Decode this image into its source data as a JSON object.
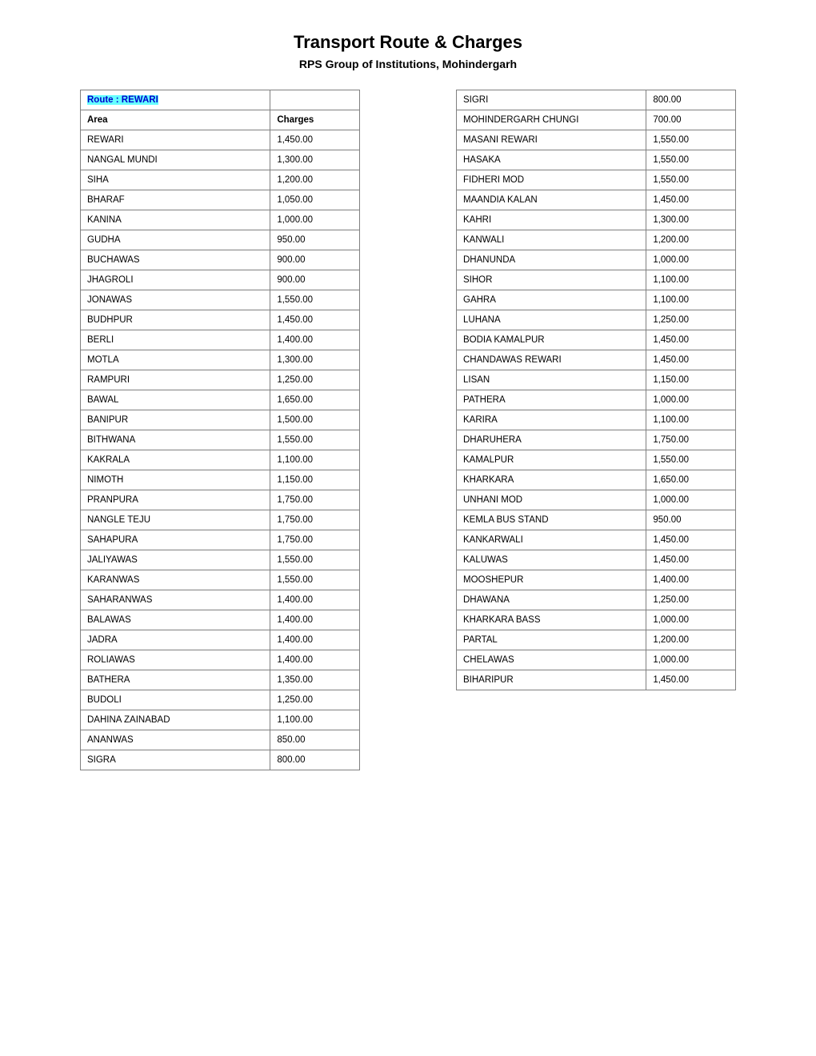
{
  "title": "Transport Route &  Charges",
  "subtitle": "RPS Group of Institutions, Mohindergarh",
  "route_label": "Route : REWARI",
  "header_area": "Area",
  "header_charges": "Charges",
  "left_rows": [
    {
      "area": "REWARI",
      "charge": "1,450.00"
    },
    {
      "area": "NANGAL MUNDI",
      "charge": "1,300.00"
    },
    {
      "area": "SIHA",
      "charge": "1,200.00"
    },
    {
      "area": "BHARAF",
      "charge": "1,050.00"
    },
    {
      "area": "KANINA",
      "charge": "1,000.00"
    },
    {
      "area": "GUDHA",
      "charge": "950.00"
    },
    {
      "area": "BUCHAWAS",
      "charge": "900.00"
    },
    {
      "area": "JHAGROLI",
      "charge": "900.00"
    },
    {
      "area": "JONAWAS",
      "charge": "1,550.00"
    },
    {
      "area": "BUDHPUR",
      "charge": "1,450.00"
    },
    {
      "area": "BERLI",
      "charge": "1,400.00"
    },
    {
      "area": "MOTLA",
      "charge": "1,300.00"
    },
    {
      "area": "RAMPURI",
      "charge": "1,250.00"
    },
    {
      "area": "BAWAL",
      "charge": "1,650.00"
    },
    {
      "area": "BANIPUR",
      "charge": "1,500.00"
    },
    {
      "area": "BITHWANA",
      "charge": "1,550.00"
    },
    {
      "area": "KAKRALA",
      "charge": "1,100.00"
    },
    {
      "area": "NIMOTH",
      "charge": "1,150.00"
    },
    {
      "area": "PRANPURA",
      "charge": "1,750.00"
    },
    {
      "area": "NANGLE TEJU",
      "charge": "1,750.00"
    },
    {
      "area": "SAHAPURA",
      "charge": "1,750.00"
    },
    {
      "area": "JALIYAWAS",
      "charge": "1,550.00"
    },
    {
      "area": "KARANWAS",
      "charge": "1,550.00"
    },
    {
      "area": "SAHARANWAS",
      "charge": "1,400.00"
    },
    {
      "area": "BALAWAS",
      "charge": "1,400.00"
    },
    {
      "area": "JADRA",
      "charge": "1,400.00"
    },
    {
      "area": "ROLIAWAS",
      "charge": "1,400.00"
    },
    {
      "area": "BATHERA",
      "charge": "1,350.00"
    },
    {
      "area": "BUDOLI",
      "charge": "1,250.00"
    },
    {
      "area": "DAHINA ZAINABAD",
      "charge": "1,100.00"
    },
    {
      "area": "ANANWAS",
      "charge": "850.00"
    },
    {
      "area": "SIGRA",
      "charge": "800.00"
    }
  ],
  "right_rows": [
    {
      "area": "SIGRI",
      "charge": "800.00"
    },
    {
      "area": "MOHINDERGARH CHUNGI",
      "charge": "700.00"
    },
    {
      "area": "MASANI REWARI",
      "charge": "1,550.00"
    },
    {
      "area": "HASAKA",
      "charge": "1,550.00"
    },
    {
      "area": "FIDHERI MOD",
      "charge": "1,550.00"
    },
    {
      "area": "MAANDIA KALAN",
      "charge": "1,450.00"
    },
    {
      "area": "KAHRI",
      "charge": "1,300.00"
    },
    {
      "area": "KANWALI",
      "charge": "1,200.00"
    },
    {
      "area": "DHANUNDA",
      "charge": "1,000.00"
    },
    {
      "area": "SIHOR",
      "charge": "1,100.00"
    },
    {
      "area": "GAHRA",
      "charge": "1,100.00"
    },
    {
      "area": "LUHANA",
      "charge": "1,250.00"
    },
    {
      "area": "BODIA KAMALPUR",
      "charge": "1,450.00"
    },
    {
      "area": "CHANDAWAS REWARI",
      "charge": "1,450.00"
    },
    {
      "area": "LISAN",
      "charge": "1,150.00"
    },
    {
      "area": "PATHERA",
      "charge": "1,000.00"
    },
    {
      "area": "KARIRA",
      "charge": "1,100.00"
    },
    {
      "area": "DHARUHERA",
      "charge": "1,750.00"
    },
    {
      "area": "KAMALPUR",
      "charge": "1,550.00"
    },
    {
      "area": "KHARKARA",
      "charge": "1,650.00"
    },
    {
      "area": "UNHANI MOD",
      "charge": "1,000.00"
    },
    {
      "area": "KEMLA BUS STAND",
      "charge": "950.00"
    },
    {
      "area": "KANKARWALI",
      "charge": "1,450.00"
    },
    {
      "area": "KALUWAS",
      "charge": "1,450.00"
    },
    {
      "area": "MOOSHEPUR",
      "charge": "1,400.00"
    },
    {
      "area": "DHAWANA",
      "charge": "1,250.00"
    },
    {
      "area": "KHARKARA BASS",
      "charge": "1,000.00"
    },
    {
      "area": "PARTAL",
      "charge": "1,200.00"
    },
    {
      "area": "CHELAWAS",
      "charge": "1,000.00"
    },
    {
      "area": "BIHARIPUR",
      "charge": "1,450.00"
    }
  ]
}
